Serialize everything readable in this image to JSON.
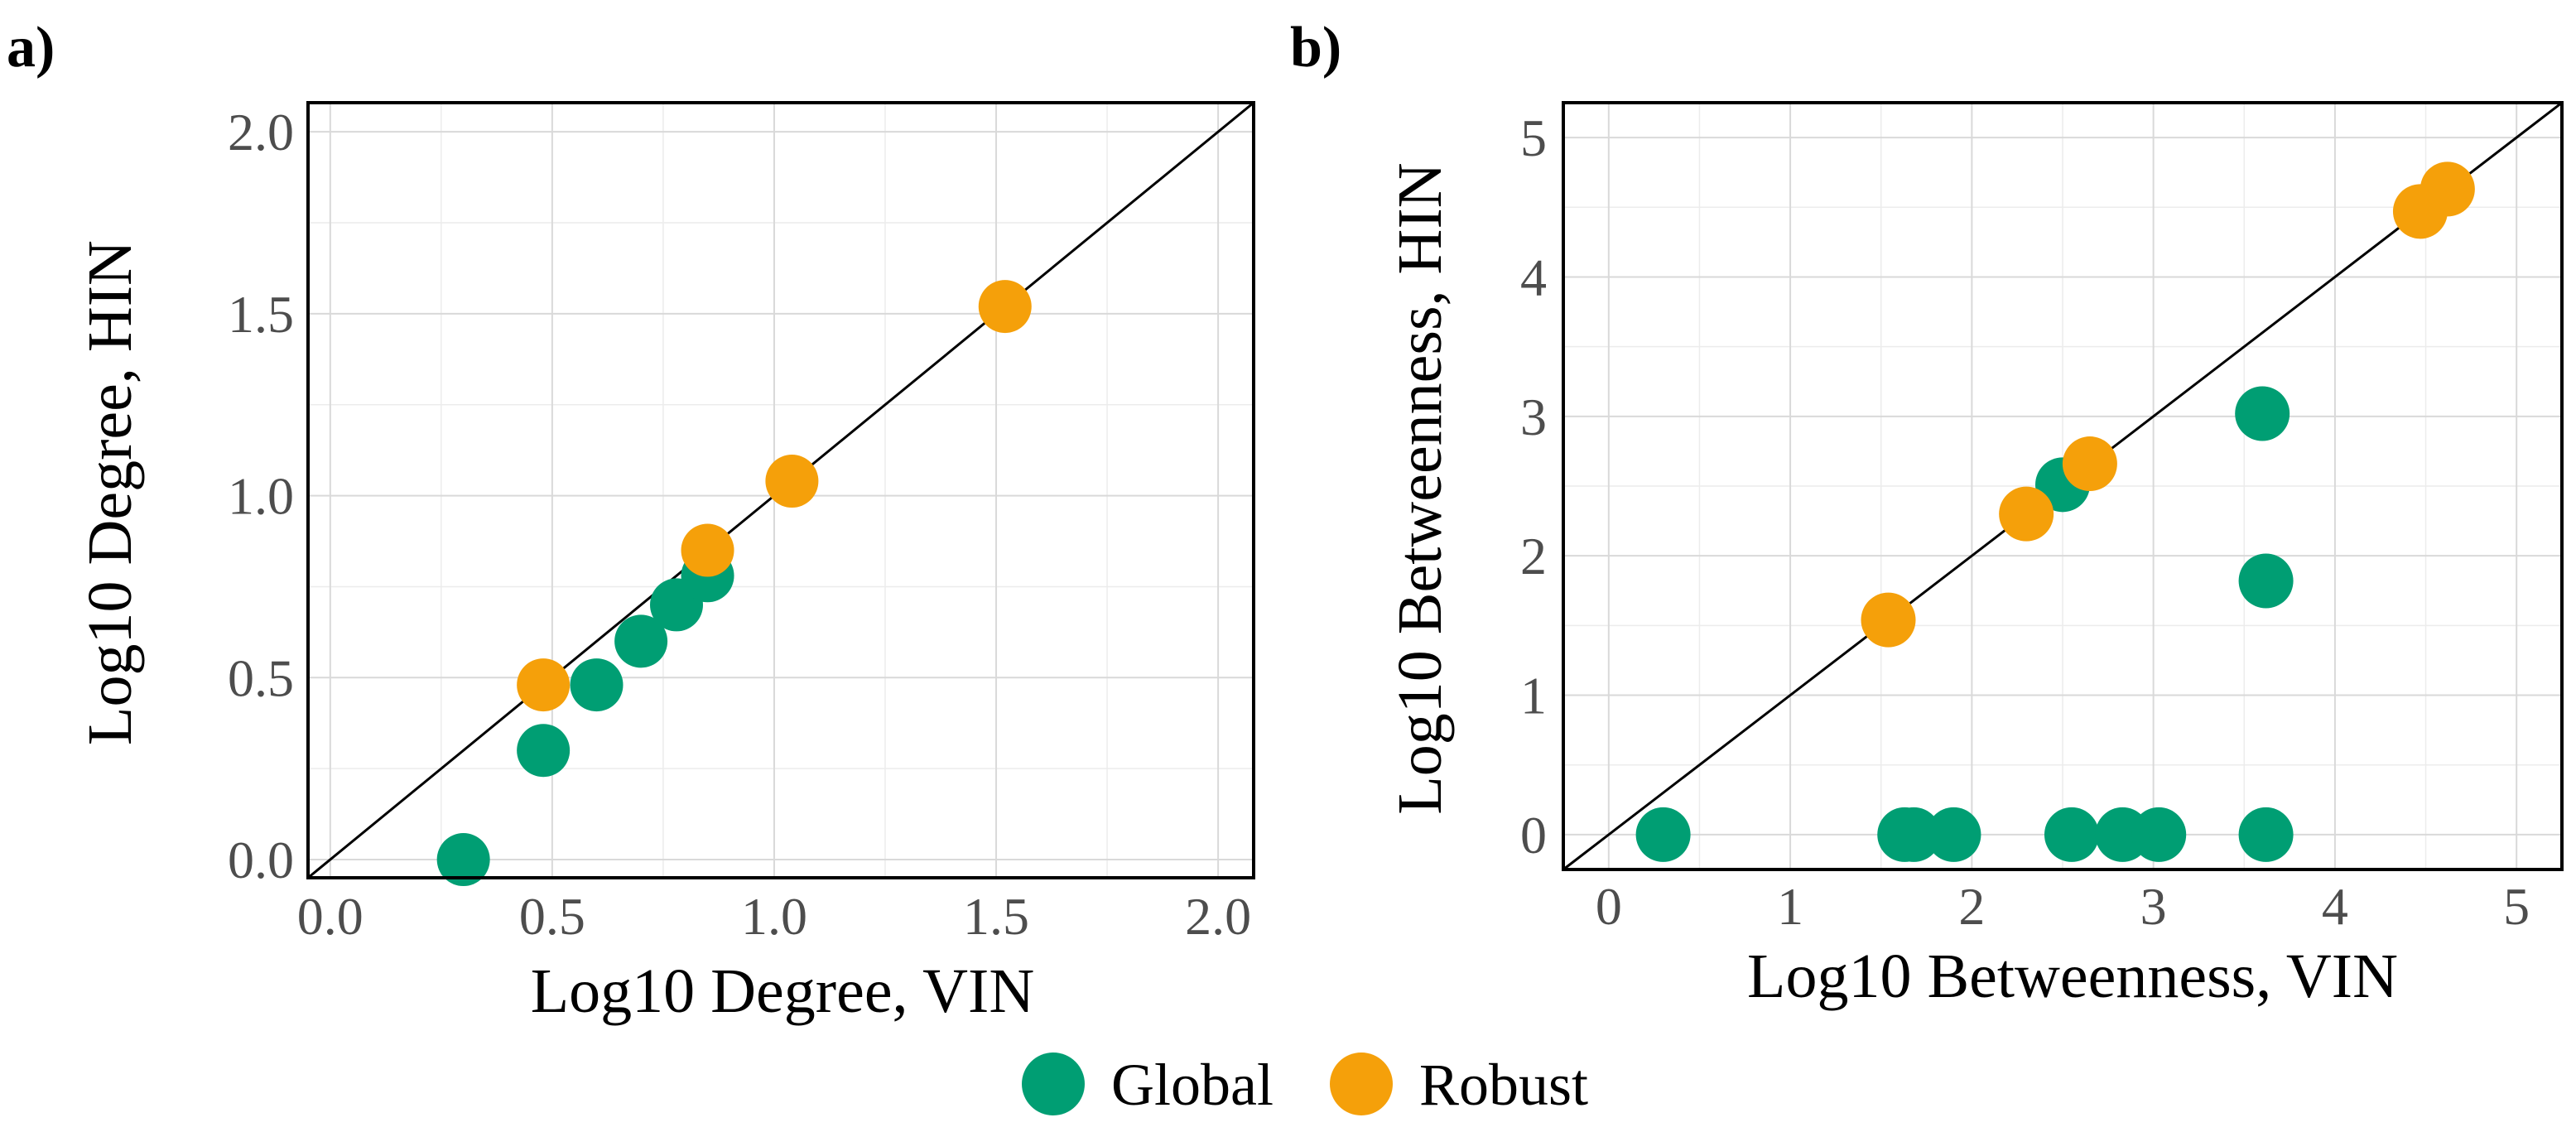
{
  "legend": {
    "items": [
      {
        "label": "Global",
        "color": "#009E73"
      },
      {
        "label": "Robust",
        "color": "#F5A00A"
      }
    ]
  },
  "chart_data": [
    {
      "type": "scatter",
      "panel_label": "a)",
      "xlabel": "Log10 Degree, VIN",
      "ylabel": "Log10 Degree, HIN",
      "xlim": [
        -0.05,
        2.08
      ],
      "ylim": [
        -0.05,
        2.08
      ],
      "xticks": [
        0.0,
        0.5,
        1.0,
        1.5,
        2.0
      ],
      "yticks": [
        0.0,
        0.5,
        1.0,
        1.5,
        2.0
      ],
      "xtick_labels": [
        "0.0",
        "0.5",
        "1.0",
        "1.5",
        "2.0"
      ],
      "ytick_labels": [
        "0.0",
        "0.5",
        "1.0",
        "1.5",
        "2.0"
      ],
      "reference_line": "y = x",
      "grid": true,
      "series": [
        {
          "name": "Global",
          "color": "#009E73",
          "points": [
            [
              0.3,
              0.0
            ],
            [
              0.48,
              0.3
            ],
            [
              0.6,
              0.48
            ],
            [
              0.7,
              0.6
            ],
            [
              0.78,
              0.7
            ],
            [
              0.85,
              0.78
            ]
          ]
        },
        {
          "name": "Robust",
          "color": "#F5A00A",
          "points": [
            [
              0.48,
              0.48
            ],
            [
              0.85,
              0.85
            ],
            [
              1.04,
              1.04
            ],
            [
              1.52,
              1.52
            ]
          ]
        }
      ]
    },
    {
      "type": "scatter",
      "panel_label": "b)",
      "xlabel": "Log10 Betweenness, VIN",
      "ylabel": "Log10 Betweenness, HIN",
      "xlim": [
        -0.25,
        5.25
      ],
      "ylim": [
        -0.25,
        5.25
      ],
      "xticks": [
        0,
        1,
        2,
        3,
        4,
        5
      ],
      "yticks": [
        0,
        1,
        2,
        3,
        4,
        5
      ],
      "xtick_labels": [
        "0",
        "1",
        "2",
        "3",
        "4",
        "5"
      ],
      "ytick_labels": [
        "0",
        "1",
        "2",
        "3",
        "4",
        "5"
      ],
      "reference_line": "y = x",
      "grid": true,
      "series": [
        {
          "name": "Global",
          "color": "#009E73",
          "points": [
            [
              0.3,
              0.0
            ],
            [
              1.63,
              0.0
            ],
            [
              1.68,
              0.0
            ],
            [
              1.9,
              0.0
            ],
            [
              2.55,
              0.0
            ],
            [
              2.83,
              0.0
            ],
            [
              3.03,
              0.0
            ],
            [
              3.62,
              0.0
            ],
            [
              2.5,
              2.51
            ],
            [
              3.6,
              3.02
            ],
            [
              3.62,
              1.82
            ]
          ]
        },
        {
          "name": "Robust",
          "color": "#F5A00A",
          "points": [
            [
              1.54,
              1.54
            ],
            [
              2.3,
              2.3
            ],
            [
              2.65,
              2.66
            ],
            [
              4.47,
              4.47
            ],
            [
              4.62,
              4.63
            ]
          ]
        }
      ]
    }
  ]
}
